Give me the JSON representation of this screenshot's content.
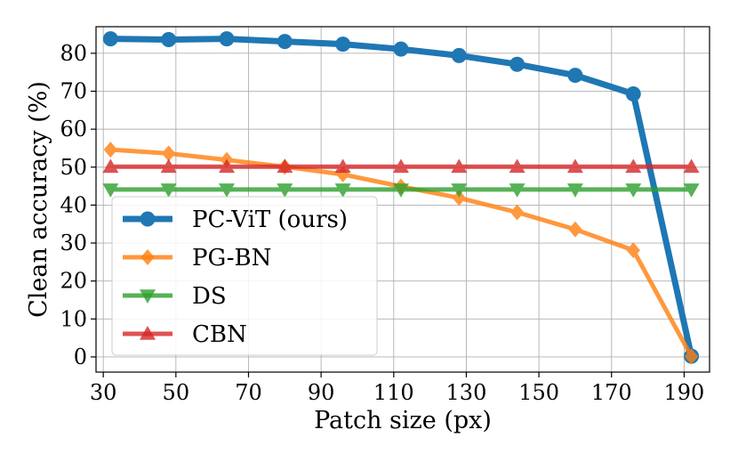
{
  "chart_data": {
    "type": "line",
    "title": "",
    "xlabel": "Patch size (px)",
    "ylabel": "Clean accuracy (%)",
    "xlim": [
      28,
      197
    ],
    "ylim": [
      -4,
      87
    ],
    "xticks": [
      30,
      50,
      70,
      90,
      110,
      130,
      150,
      170,
      190
    ],
    "yticks": [
      0,
      10,
      20,
      30,
      40,
      50,
      60,
      70,
      80
    ],
    "grid": true,
    "legend_position": "lower-left",
    "x": [
      32,
      48,
      64,
      80,
      96,
      112,
      128,
      144,
      160,
      176,
      192
    ],
    "series": [
      {
        "name": "PC-ViT (ours)",
        "color": "#1f77b4",
        "marker": "circle",
        "values": [
          83.8,
          83.6,
          83.8,
          83.1,
          82.4,
          81.1,
          79.4,
          77.1,
          74.2,
          69.3,
          0.2
        ]
      },
      {
        "name": "PG-BN",
        "color": "#ff7f0e",
        "marker": "diamond",
        "values": [
          54.6,
          53.6,
          51.9,
          50.1,
          48.1,
          44.9,
          41.9,
          38.1,
          33.6,
          28.1,
          0.1
        ]
      },
      {
        "name": "DS",
        "color": "#2ca02c",
        "marker": "triangle-down",
        "values": [
          44.1,
          44.1,
          44.1,
          44.1,
          44.1,
          44.1,
          44.1,
          44.1,
          44.1,
          44.1,
          44.1
        ]
      },
      {
        "name": "CBN",
        "color": "#d62728",
        "marker": "triangle-up",
        "values": [
          50.1,
          50.1,
          50.1,
          50.1,
          50.1,
          50.1,
          50.1,
          50.1,
          50.1,
          50.1,
          50.1
        ]
      }
    ]
  }
}
